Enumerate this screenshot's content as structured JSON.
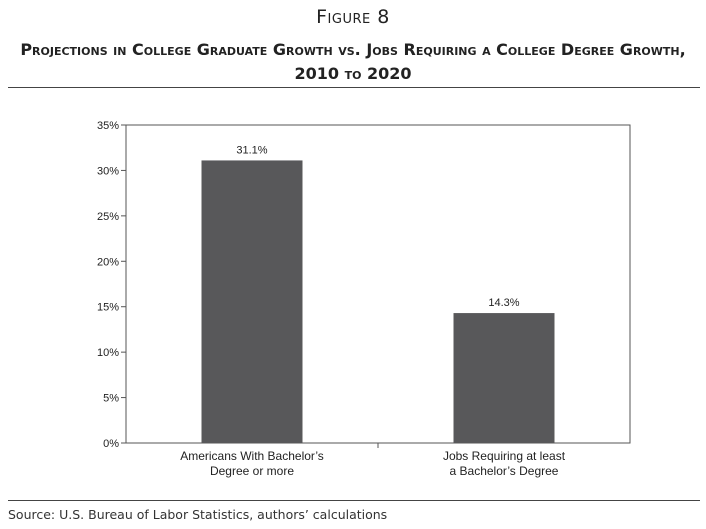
{
  "figure": {
    "label": "Figure 8",
    "title_line1": "Projections in College Graduate Growth vs. Jobs Requiring a College Degree Growth,",
    "title_line2": "2010 to 2020",
    "source": "Source: U.S. Bureau of Labor Statistics, authors’ calculations"
  },
  "colors": {
    "bar": "#58585a",
    "axis": "#555555"
  },
  "chart_data": {
    "type": "bar",
    "title": "Projections in College Graduate Growth vs. Jobs Requiring a College Degree Growth, 2010 to 2020",
    "xlabel": "",
    "ylabel": "",
    "categories": [
      [
        "Americans With Bachelor’s",
        "Degree or more"
      ],
      [
        "Jobs Requiring at least",
        "a Bachelor’s Degree"
      ]
    ],
    "values": [
      31.1,
      14.3
    ],
    "value_labels": [
      "31.1%",
      "14.3%"
    ],
    "ylim": [
      0,
      35
    ],
    "yticks": [
      0,
      5,
      10,
      15,
      20,
      25,
      30,
      35
    ],
    "ytick_labels": [
      "0%",
      "5%",
      "10%",
      "15%",
      "20%",
      "25%",
      "30%",
      "35%"
    ],
    "grid": false,
    "legend": "none"
  }
}
